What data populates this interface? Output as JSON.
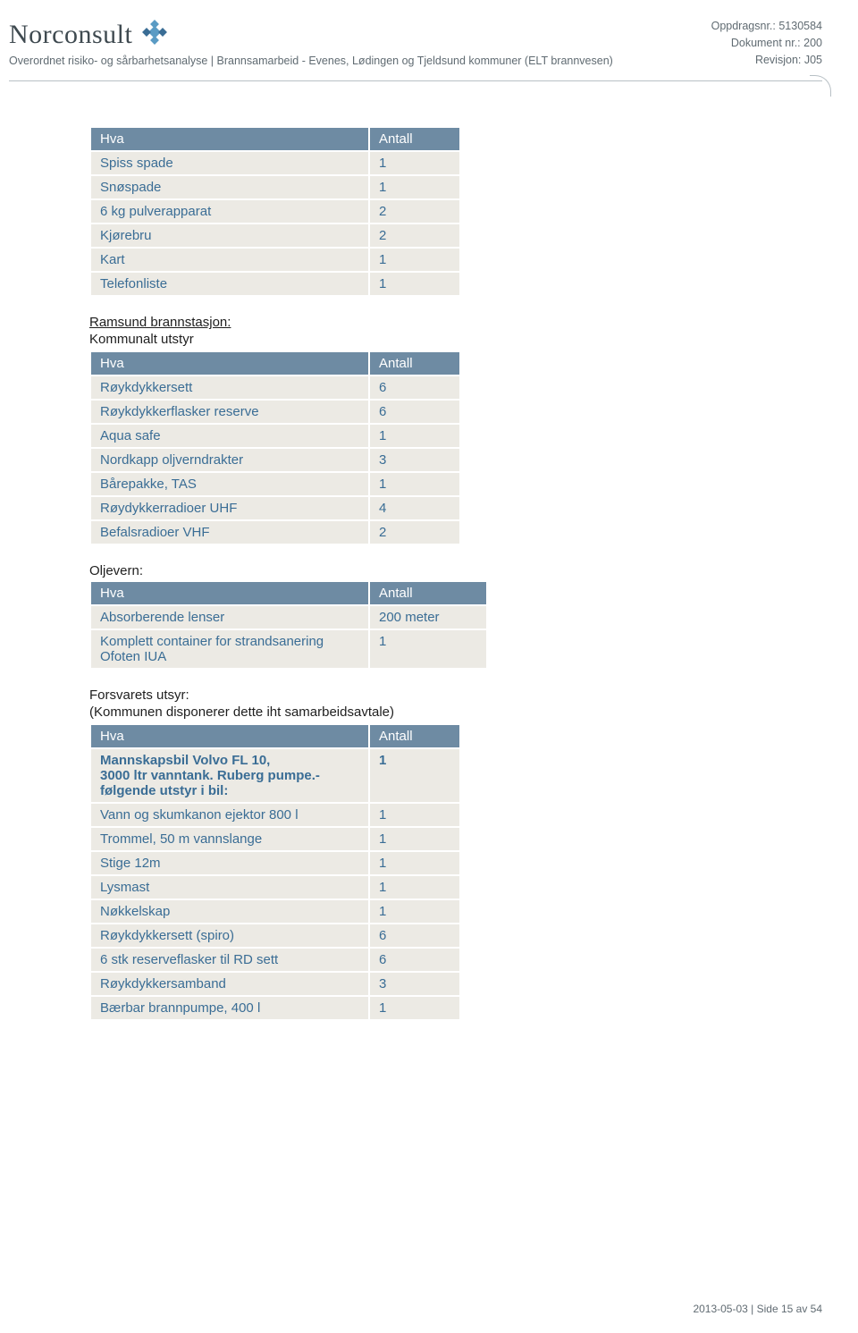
{
  "colors": {
    "header_bg": "#6e8ba3",
    "header_text": "#ffffff",
    "row_bg": "#eceae4",
    "row_text": "#3a6d95",
    "body_text": "#1e1e1e",
    "logo_text": "#3f4a50",
    "meta_text": "#606b72",
    "divider": "#b8c0c5",
    "logo_diamond": "#5a9bc4",
    "logo_diamond_dark": "#3a6d95"
  },
  "header": {
    "logo": "Norconsult",
    "subtitle": "Overordnet risiko- og sårbarhetsanalyse | Brannsamarbeid - Evenes, Lødingen og Tjeldsund kommuner (ELT brannvesen)",
    "meta1": "Oppdragsnr.: 5130584",
    "meta2": "Dokument nr.: 200",
    "meta3": "Revisjon: J05"
  },
  "tables": {
    "t1": {
      "col1_width": 310,
      "col2_width": 100,
      "headers": [
        "Hva",
        "Antall"
      ],
      "rows": [
        [
          "Spiss spade",
          "1"
        ],
        [
          "Snøspade",
          "1"
        ],
        [
          "6 kg pulverapparat",
          "2"
        ],
        [
          "Kjørebru",
          "2"
        ],
        [
          "Kart",
          "1"
        ],
        [
          "Telefonliste",
          "1"
        ]
      ]
    },
    "t2": {
      "title": "Ramsund brannstasjon:",
      "subtitle": "Kommunalt utstyr",
      "col1_width": 310,
      "col2_width": 100,
      "headers": [
        "Hva",
        "Antall"
      ],
      "rows": [
        [
          "Røykdykkersett",
          "6"
        ],
        [
          "Røykdykkerflasker reserve",
          "6"
        ],
        [
          "Aqua safe",
          "1"
        ],
        [
          "Nordkapp oljverndrakter",
          "3"
        ],
        [
          "Bårepakke, TAS",
          "1"
        ],
        [
          "Røydykkerradioer UHF",
          "4"
        ],
        [
          "Befalsradioer VHF",
          "2"
        ]
      ]
    },
    "t3": {
      "title": "Oljevern:",
      "col1_width": 310,
      "col2_width": 130,
      "headers": [
        "Hva",
        "Antall"
      ],
      "rows": [
        [
          "Absorberende lenser",
          "200 meter"
        ],
        [
          "Komplett container for strandsanering Ofoten IUA",
          "1"
        ]
      ]
    },
    "t4": {
      "title": "Forsvarets utsyr:",
      "subtitle": "(Kommunen disponerer dette iht samarbeidsavtale)",
      "col1_width": 310,
      "col2_width": 100,
      "headers": [
        "Hva",
        "Antall"
      ],
      "rows": [
        [
          "Mannskapsbil Volvo FL 10,\n3000 ltr vanntank. Ruberg pumpe.- følgende utstyr i bil:",
          "1"
        ],
        [
          "Vann og skumkanon ejektor 800 l",
          "1"
        ],
        [
          "Trommel, 50 m vannslange",
          "1"
        ],
        [
          "Stige 12m",
          "1"
        ],
        [
          "Lysmast",
          "1"
        ],
        [
          "Nøkkelskap",
          "1"
        ],
        [
          "Røykdykkersett (spiro)",
          "6"
        ],
        [
          "6 stk reserveflasker til RD sett",
          "6"
        ],
        [
          "Røykdykkersamband",
          "3"
        ],
        [
          "Bærbar brannpumpe, 400 l",
          "1"
        ]
      ],
      "first_row_bold": true
    }
  },
  "footer": "2013-05-03 | Side 15 av 54"
}
